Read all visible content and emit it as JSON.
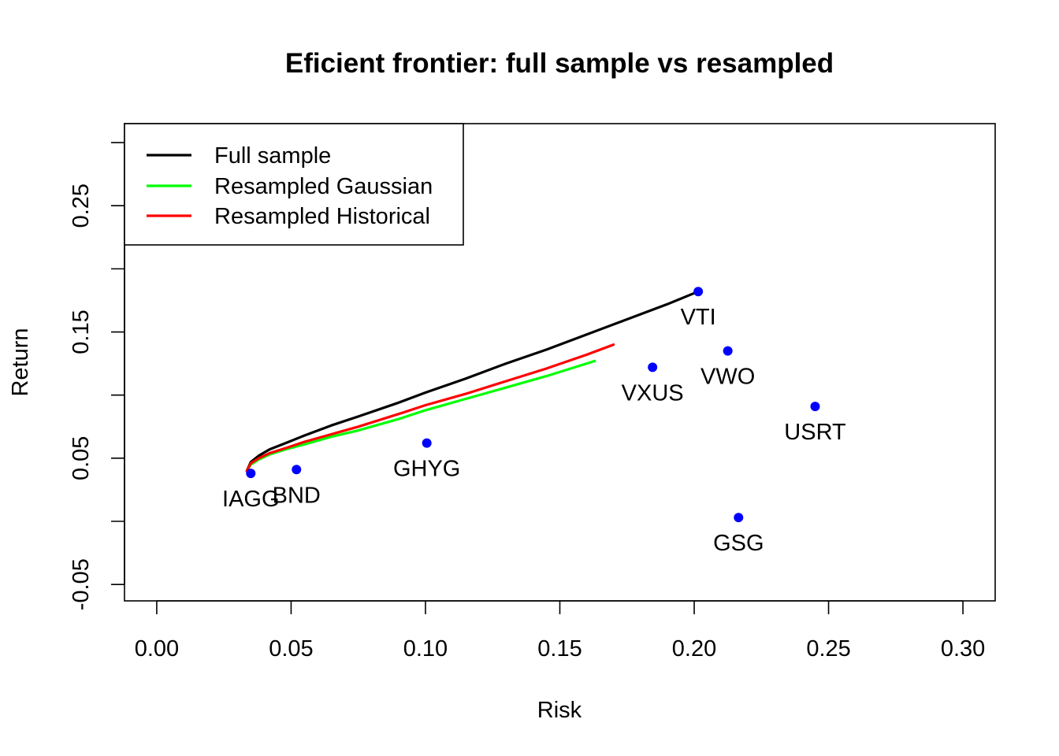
{
  "chart_data": {
    "type": "line",
    "title": "Eficient frontier: full sample vs resampled",
    "xlabel": "Risk",
    "ylabel": "Return",
    "xlim": [
      -0.012,
      0.312
    ],
    "ylim": [
      -0.063,
      0.315
    ],
    "x_ticks": [
      0.0,
      0.05,
      0.1,
      0.15,
      0.2,
      0.25,
      0.3
    ],
    "x_tick_labels": [
      "0.00",
      "0.05",
      "0.10",
      "0.15",
      "0.20",
      "0.25",
      "0.30"
    ],
    "y_ticks": [
      -0.05,
      0.0,
      0.05,
      0.1,
      0.15,
      0.2,
      0.25,
      0.3
    ],
    "y_tick_labels": [
      "-0.05",
      "",
      "0.05",
      "",
      "0.15",
      "",
      "0.25",
      ""
    ],
    "legend": {
      "position": "top-left",
      "entries": [
        {
          "label": "Full sample",
          "color": "#000000"
        },
        {
          "label": "Resampled Gaussian",
          "color": "#00ff00"
        },
        {
          "label": "Resampled Historical",
          "color": "#ff0000"
        }
      ]
    },
    "series": [
      {
        "name": "Full sample",
        "color": "#000000",
        "x": [
          0.0335,
          0.035,
          0.038,
          0.042,
          0.048,
          0.055,
          0.065,
          0.075,
          0.09,
          0.1,
          0.115,
          0.13,
          0.145,
          0.16,
          0.175,
          0.19,
          0.2015
        ],
        "y": [
          0.04,
          0.047,
          0.052,
          0.057,
          0.062,
          0.068,
          0.076,
          0.083,
          0.094,
          0.102,
          0.113,
          0.125,
          0.136,
          0.148,
          0.16,
          0.172,
          0.182
        ]
      },
      {
        "name": "Resampled Gaussian",
        "color": "#00ff00",
        "x": [
          0.0335,
          0.035,
          0.038,
          0.042,
          0.048,
          0.055,
          0.065,
          0.075,
          0.09,
          0.1,
          0.115,
          0.13,
          0.145,
          0.16,
          0.163
        ],
        "y": [
          0.04,
          0.045,
          0.049,
          0.053,
          0.057,
          0.061,
          0.067,
          0.072,
          0.081,
          0.088,
          0.097,
          0.106,
          0.115,
          0.125,
          0.127
        ]
      },
      {
        "name": "Resampled Historical",
        "color": "#ff0000",
        "x": [
          0.0335,
          0.035,
          0.038,
          0.042,
          0.048,
          0.055,
          0.065,
          0.075,
          0.09,
          0.1,
          0.115,
          0.13,
          0.145,
          0.16,
          0.17
        ],
        "y": [
          0.04,
          0.046,
          0.05,
          0.054,
          0.058,
          0.063,
          0.069,
          0.075,
          0.085,
          0.092,
          0.101,
          0.111,
          0.121,
          0.132,
          0.14
        ]
      }
    ],
    "points": [
      {
        "label": "VTI",
        "x": 0.2015,
        "y": 0.182
      },
      {
        "label": "VWO",
        "x": 0.2125,
        "y": 0.135
      },
      {
        "label": "VXUS",
        "x": 0.1845,
        "y": 0.122
      },
      {
        "label": "USRT",
        "x": 0.245,
        "y": 0.091
      },
      {
        "label": "GHYG",
        "x": 0.1005,
        "y": 0.062
      },
      {
        "label": "BND",
        "x": 0.052,
        "y": 0.041
      },
      {
        "label": "IAGG",
        "x": 0.035,
        "y": 0.038
      },
      {
        "label": "GSG",
        "x": 0.2165,
        "y": 0.003
      }
    ],
    "point_color": "#0000ff"
  }
}
